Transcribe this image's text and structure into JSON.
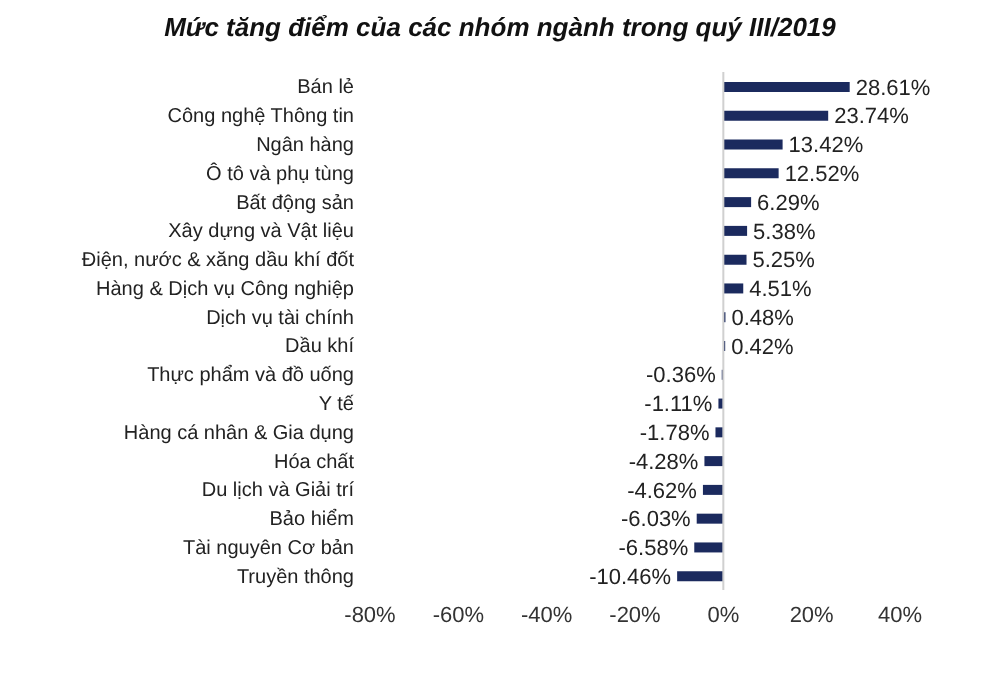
{
  "chart_data": {
    "type": "bar",
    "orientation": "horizontal",
    "title": "Mức tăng điểm của các nhóm ngành trong quý III/2019",
    "categories": [
      "Bán lẻ",
      "Công nghệ Thông tin",
      "Ngân hàng",
      "Ô tô và phụ tùng",
      "Bất động sản",
      "Xây dựng và Vật liệu",
      "Điện, nước & xăng dầu khí đốt",
      "Hàng & Dịch vụ Công nghiệp",
      "Dịch vụ tài chính",
      "Dầu khí",
      "Thực phẩm và đồ uống",
      "Y tế",
      "Hàng cá nhân & Gia dụng",
      "Hóa chất",
      "Du lịch và Giải trí",
      "Bảo hiểm",
      "Tài nguyên Cơ bản",
      "Truyền thông"
    ],
    "values": [
      28.61,
      23.74,
      13.42,
      12.52,
      6.29,
      5.38,
      5.25,
      4.51,
      0.48,
      0.42,
      -0.36,
      -1.11,
      -1.78,
      -4.28,
      -4.62,
      -6.03,
      -6.58,
      -10.46
    ],
    "value_labels": [
      "28.61%",
      "23.74%",
      "13.42%",
      "12.52%",
      "6.29%",
      "5.38%",
      "5.25%",
      "4.51%",
      "0.48%",
      "0.42%",
      "-0.36%",
      "-1.11%",
      "-1.78%",
      "-4.28%",
      "-4.62%",
      "-6.03%",
      "-6.58%",
      "-10.46%"
    ],
    "color": "#1b2a5e",
    "xlim": [
      -80,
      40
    ],
    "xticks": [
      {
        "value": -80,
        "label": "-80%"
      },
      {
        "value": -60,
        "label": "-60%"
      },
      {
        "value": -40,
        "label": "-40%"
      },
      {
        "value": -20,
        "label": "-20%"
      },
      {
        "value": 0,
        "label": "0%"
      },
      {
        "value": 20,
        "label": "20%"
      },
      {
        "value": 40,
        "label": "40%"
      }
    ],
    "ref_lines": [
      {
        "axis": "x",
        "value": 0,
        "color": "#d0d0d0"
      }
    ],
    "grid": false,
    "legend": false
  }
}
